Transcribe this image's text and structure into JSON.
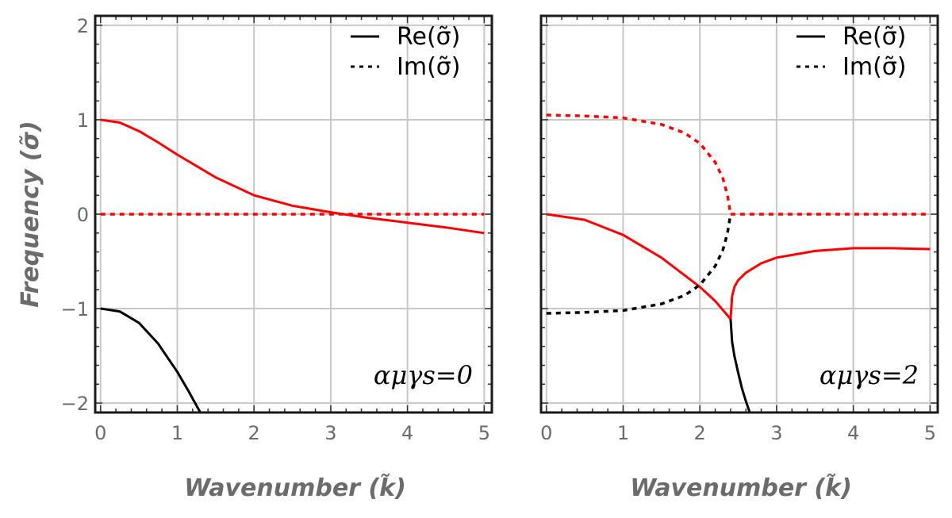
{
  "figure": {
    "xlabel": "Wavenumber (k̃)",
    "ylabel": "Frequency (σ̃)"
  },
  "colors": {
    "red": "#ff0000",
    "black": "#000000",
    "grid": "#c8c8c8",
    "frame": "#1a1a1a"
  },
  "chart_data": [
    {
      "type": "line",
      "title": "",
      "annotation": "αμγs=0",
      "xlabel": "Wavenumber (k̃)",
      "ylabel": "Frequency (σ̃)",
      "xlim": [
        -0.07,
        5.1
      ],
      "ylim": [
        -2.1,
        2.1
      ],
      "xticks": [
        0,
        1,
        2,
        3,
        4,
        5
      ],
      "yticks": [
        -2,
        -1,
        0,
        1,
        2
      ],
      "xtick_labels": [
        "0",
        "1",
        "2",
        "3",
        "4",
        "5"
      ],
      "ytick_labels": [
        "−2",
        "−1",
        "0",
        "1",
        "2"
      ],
      "grid": true,
      "legend": {
        "position": "top-right",
        "entries": [
          {
            "label": "Re(σ̃)",
            "style": "solid"
          },
          {
            "label": "Im(σ̃)",
            "style": "dotted"
          }
        ]
      },
      "series": [
        {
          "part": "Re",
          "color": "red",
          "style": "solid",
          "x": [
            0,
            0.25,
            0.5,
            0.75,
            1,
            1.5,
            2,
            2.5,
            3,
            3.5,
            4,
            4.5,
            5
          ],
          "y": [
            1,
            0.97,
            0.88,
            0.76,
            0.63,
            0.39,
            0.2,
            0.09,
            0.02,
            -0.04,
            -0.09,
            -0.14,
            -0.2
          ]
        },
        {
          "part": "Im",
          "color": "red",
          "style": "dotted",
          "x": [
            0,
            5
          ],
          "y": [
            0,
            0
          ]
        },
        {
          "part": "Re",
          "color": "black",
          "style": "solid",
          "x": [
            0,
            0.25,
            0.5,
            0.75,
            1,
            1.15,
            1.3
          ],
          "y": [
            -1,
            -1.03,
            -1.15,
            -1.37,
            -1.67,
            -1.88,
            -2.1
          ]
        }
      ]
    },
    {
      "type": "line",
      "title": "",
      "annotation": "αμγs=2",
      "xlabel": "Wavenumber (k̃)",
      "ylabel": "",
      "xlim": [
        -0.07,
        5.1
      ],
      "ylim": [
        -2.1,
        2.1
      ],
      "xticks": [
        0,
        1,
        2,
        3,
        4,
        5
      ],
      "yticks": [
        -2,
        -1,
        0,
        1,
        2
      ],
      "xtick_labels": [
        "0",
        "1",
        "2",
        "3",
        "4",
        "5"
      ],
      "grid": true,
      "legend": {
        "position": "top-right",
        "entries": [
          {
            "label": "Re(σ̃)",
            "style": "solid"
          },
          {
            "label": "Im(σ̃)",
            "style": "dotted"
          }
        ]
      },
      "series": [
        {
          "part": "Re",
          "color": "red",
          "style": "solid",
          "x": [
            0,
            0.5,
            1,
            1.5,
            2,
            2.2,
            2.4
          ],
          "y": [
            0,
            -0.06,
            -0.22,
            -0.46,
            -0.77,
            -0.92,
            -1.11
          ]
        },
        {
          "part": "Re",
          "color": "red",
          "style": "solid",
          "x": [
            2.4,
            2.42,
            2.45,
            2.5,
            2.6,
            2.8,
            3,
            3.5,
            4,
            4.5,
            5
          ],
          "y": [
            -1.11,
            -0.87,
            -0.77,
            -0.7,
            -0.62,
            -0.52,
            -0.46,
            -0.39,
            -0.36,
            -0.36,
            -0.37
          ]
        },
        {
          "part": "Re",
          "color": "black",
          "style": "solid",
          "x": [
            2.4,
            2.42,
            2.45,
            2.5,
            2.55,
            2.6,
            2.65
          ],
          "y": [
            -1.11,
            -1.35,
            -1.5,
            -1.68,
            -1.85,
            -1.98,
            -2.1
          ]
        },
        {
          "part": "Im",
          "color": "red",
          "style": "dotted",
          "x": [
            0,
            0.5,
            1,
            1.5,
            1.8,
            2,
            2.2,
            2.3,
            2.36,
            2.4
          ],
          "y": [
            1.05,
            1.04,
            1.02,
            0.95,
            0.86,
            0.75,
            0.55,
            0.38,
            0.2,
            0
          ]
        },
        {
          "part": "Im",
          "color": "black",
          "style": "dotted",
          "x": [
            0,
            0.5,
            1,
            1.5,
            1.8,
            2,
            2.2,
            2.3,
            2.36,
            2.4
          ],
          "y": [
            -1.05,
            -1.04,
            -1.02,
            -0.95,
            -0.86,
            -0.75,
            -0.55,
            -0.38,
            -0.2,
            0
          ]
        },
        {
          "part": "Im",
          "color": "red",
          "style": "dotted",
          "x": [
            2.4,
            5
          ],
          "y": [
            0,
            0
          ]
        }
      ]
    }
  ]
}
